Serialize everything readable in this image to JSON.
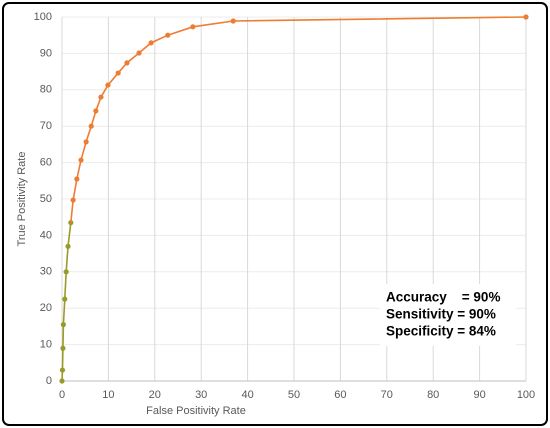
{
  "chart_data": {
    "type": "line",
    "x_label": "False Positivity Rate",
    "y_label": "True Positivity Rate",
    "series": [
      {
        "color": "#9a9a2a",
        "x": [
          0,
          0.1,
          0.2,
          0.3,
          0.6,
          0.9,
          1.3,
          1.9
        ],
        "values": [
          0,
          3,
          9,
          15.5,
          22.5,
          30,
          37,
          43.5
        ]
      },
      {
        "color": "#ed7d31",
        "x": [
          2.4,
          3.2,
          4.1,
          5.2,
          6.3,
          7.3,
          8.4,
          9.9,
          12.1,
          14,
          16.6,
          19.2,
          22.8,
          28.2,
          36.9,
          100
        ],
        "values": [
          49.7,
          55.5,
          60.7,
          65.7,
          70,
          74.2,
          78,
          81.3,
          84.6,
          87.4,
          90.1,
          92.9,
          95,
          97.3,
          98.9,
          100
        ]
      }
    ],
    "xlim": [
      0,
      100
    ],
    "ylim": [
      0,
      100
    ],
    "xticks": [
      0,
      10,
      20,
      30,
      40,
      50,
      60,
      70,
      80,
      90,
      100
    ],
    "yticks": [
      0,
      10,
      20,
      30,
      40,
      50,
      60,
      70,
      80,
      90,
      100
    ],
    "grid": true,
    "annotations": [
      "Accuracy    = 90%",
      "Sensitivity = 90%",
      "Specificity = 84%"
    ]
  }
}
